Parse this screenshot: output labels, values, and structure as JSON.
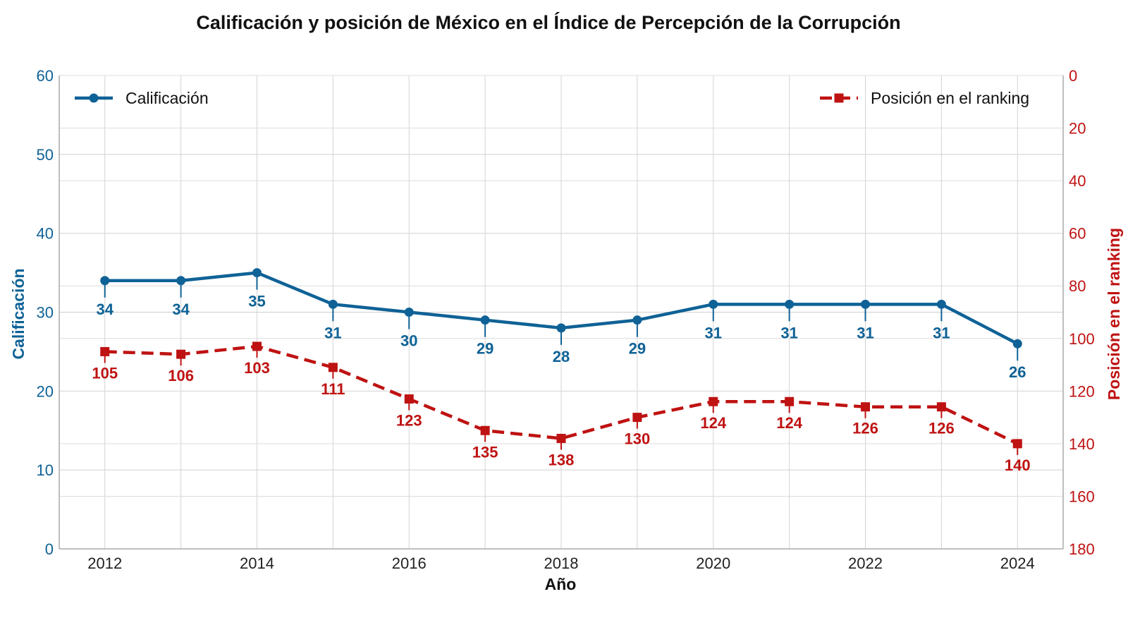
{
  "chart_data": {
    "type": "line",
    "title": "Calificación y posición de México en el Índice de Percepción de la Corrupción",
    "xlabel": "Año",
    "ylabel_left": "Calificación",
    "ylabel_right": "Posición en el ranking",
    "x": [
      2012,
      2013,
      2014,
      2015,
      2016,
      2017,
      2018,
      2019,
      2020,
      2021,
      2022,
      2023,
      2024
    ],
    "x_ticks": [
      2012,
      2014,
      2016,
      2018,
      2020,
      2022,
      2024
    ],
    "y_left_lim": [
      0,
      60
    ],
    "y_left_ticks": [
      0,
      10,
      20,
      30,
      40,
      50,
      60
    ],
    "y_right_lim": [
      180,
      0
    ],
    "y_right_inverted": true,
    "y_right_ticks": [
      0,
      20,
      40,
      60,
      80,
      100,
      120,
      140,
      160,
      180
    ],
    "grid": true,
    "series": [
      {
        "name": "Calificación",
        "axis": "left",
        "style": "solid",
        "marker": "circle",
        "color": "#0f6296",
        "values": [
          34,
          34,
          35,
          31,
          30,
          29,
          28,
          29,
          31,
          31,
          31,
          31,
          26
        ]
      },
      {
        "name": "Posición en el ranking",
        "axis": "right",
        "style": "dashed",
        "marker": "square",
        "color": "#bf1212",
        "values": [
          105,
          106,
          103,
          111,
          123,
          135,
          138,
          130,
          124,
          124,
          126,
          126,
          140
        ]
      }
    ],
    "legend": [
      "top-left",
      "top-right"
    ]
  }
}
